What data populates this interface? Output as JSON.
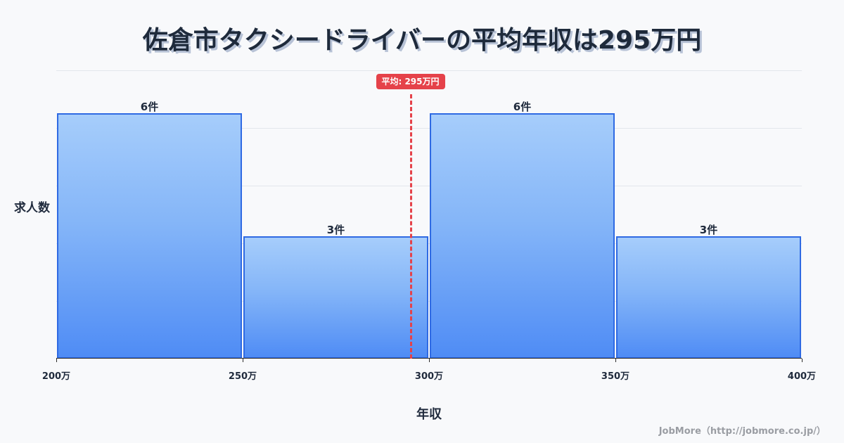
{
  "title": "佐倉市タクシードライバーの平均年収は295万円",
  "chart_data": {
    "type": "bar",
    "subtype": "histogram",
    "title": "佐倉市タクシードライバーの平均年収は295万円",
    "xlabel": "年収",
    "ylabel": "求人数",
    "categories": [
      "200万-250万",
      "250万-300万",
      "300万-350万",
      "350万-400万"
    ],
    "bin_edges": [
      200,
      250,
      300,
      350,
      400
    ],
    "values": [
      6,
      3,
      6,
      3
    ],
    "value_labels": [
      "6件",
      "3件",
      "6件",
      "3件"
    ],
    "x_tick_labels": [
      "200万",
      "250万",
      "300万",
      "350万",
      "400万"
    ],
    "xlim": [
      200,
      400
    ],
    "ylim": [
      0,
      7.5
    ],
    "grid": true,
    "legend": null,
    "annotations": [
      {
        "type": "vline",
        "x": 295,
        "style": "dashed",
        "color": "#e5424a",
        "label": "平均: 295万円"
      }
    ],
    "colors": {
      "bar_fill_top": "#a6cdfb",
      "bar_fill_bottom": "#4f8cf5",
      "bar_border": "#2f6ae3",
      "mean_line": "#e5424a"
    }
  },
  "axis": {
    "ylabel": "求人数",
    "xlabel": "年収"
  },
  "average": {
    "badge": "平均: 295万円"
  },
  "footer": {
    "source": "JobMore（http://jobmore.co.jp/）"
  }
}
